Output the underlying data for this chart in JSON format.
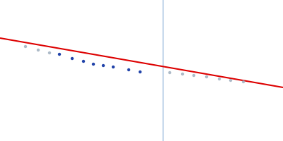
{
  "background_color": "#ffffff",
  "line_color": "#dd0000",
  "line_lw": 1.5,
  "vline_color": "#99bbdd",
  "vline_lw": 1.0,
  "vline_x": 0.575,
  "points_dark": {
    "x": [
      0.21,
      0.255,
      0.295,
      0.33,
      0.365,
      0.4,
      0.455,
      0.495
    ],
    "y": [
      0.615,
      0.585,
      0.565,
      0.545,
      0.535,
      0.525,
      0.505,
      0.49
    ],
    "color": "#2244aa",
    "size": 10,
    "alpha": 1.0
  },
  "points_light_left": {
    "x": [
      0.09,
      0.135,
      0.175
    ],
    "y": [
      0.67,
      0.645,
      0.625
    ],
    "color": "#99aabb",
    "size": 10,
    "alpha": 0.8
  },
  "points_light_right": {
    "x": [
      0.6,
      0.645,
      0.685,
      0.73,
      0.775,
      0.815,
      0.86
    ],
    "y": [
      0.485,
      0.475,
      0.465,
      0.455,
      0.44,
      0.43,
      0.42
    ],
    "color": "#99aabb",
    "size": 10,
    "alpha": 0.8
  },
  "xlim": [
    0.0,
    1.0
  ],
  "ylim": [
    0.0,
    1.0
  ],
  "line_x_start": 0.0,
  "line_x_end": 1.0,
  "line_y_start": 0.73,
  "line_y_end": 0.38
}
